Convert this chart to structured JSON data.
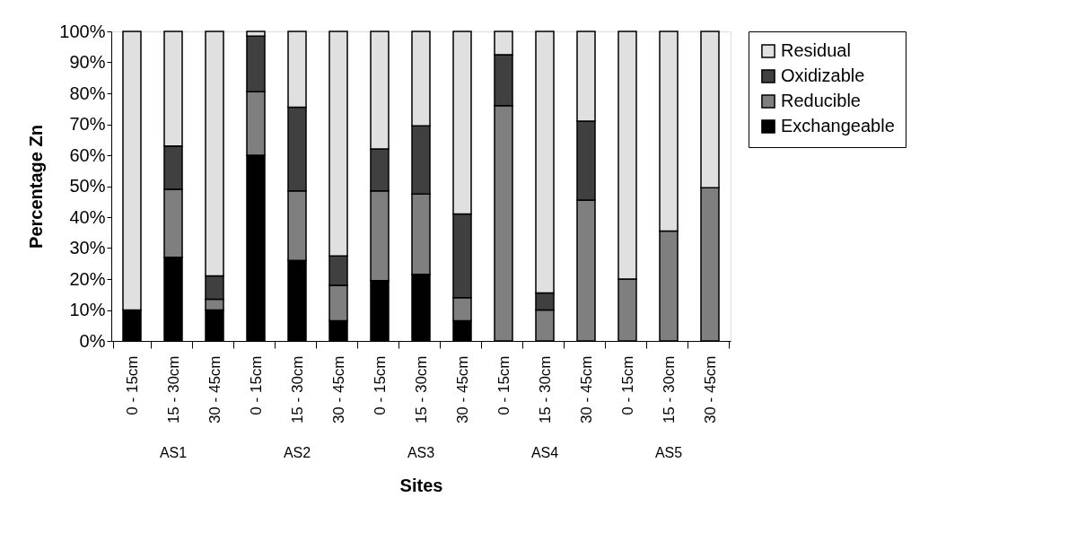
{
  "chart_data": {
    "type": "bar",
    "stacked": true,
    "xlabel": "Sites",
    "ylabel": "Percentage Zn",
    "categories": [
      "0 - 15cm",
      "15 - 30cm",
      "30 - 45cm",
      "0 - 15cm",
      "15 - 30cm",
      "30 - 45cm",
      "0 - 15cm",
      "15 - 30cm",
      "30 - 45cm",
      "0 - 15cm",
      "15 - 30cm",
      "30 - 45cm",
      "0 - 15cm",
      "15 - 30cm",
      "30 - 45cm"
    ],
    "annotations": [
      "AS1",
      "AS2",
      "AS3",
      "AS4",
      "AS5"
    ],
    "series": [
      {
        "name": "Exchangeable",
        "color": "#000000",
        "values": [
          10,
          27,
          10,
          60,
          26,
          6.5,
          19.5,
          21.5,
          6.5,
          0,
          0,
          0,
          0,
          0,
          0
        ]
      },
      {
        "name": "Reducible",
        "color": "#7f7f7f",
        "values": [
          0,
          22,
          3.5,
          20.5,
          22.5,
          11.5,
          29,
          26,
          7.5,
          76,
          10,
          45.5,
          20,
          35.5,
          49.5
        ]
      },
      {
        "name": "Oxidizable",
        "color": "#404040",
        "values": [
          0,
          14,
          7.5,
          18,
          27,
          9.5,
          13.5,
          22,
          27,
          16.5,
          5.5,
          25.5,
          0,
          0,
          0
        ]
      },
      {
        "name": "Residual",
        "color": "#e0e0e0",
        "values": [
          90,
          37,
          79,
          1.5,
          24.5,
          72.5,
          38,
          30.5,
          59,
          7.5,
          84.5,
          29,
          80,
          64.5,
          50.5
        ]
      }
    ],
    "ylim": [
      0,
      100
    ],
    "yticks": [
      {
        "value": 0,
        "label": "0%"
      },
      {
        "value": 10,
        "label": "10%"
      },
      {
        "value": 20,
        "label": "20%"
      },
      {
        "value": 30,
        "label": "30%"
      },
      {
        "value": 40,
        "label": "40%"
      },
      {
        "value": 50,
        "label": "50%"
      },
      {
        "value": 60,
        "label": "60%"
      },
      {
        "value": 70,
        "label": "70%"
      },
      {
        "value": 80,
        "label": "80%"
      },
      {
        "value": 90,
        "label": "90%"
      },
      {
        "value": 100,
        "label": "100%"
      }
    ],
    "grid": false,
    "legend": "right"
  }
}
